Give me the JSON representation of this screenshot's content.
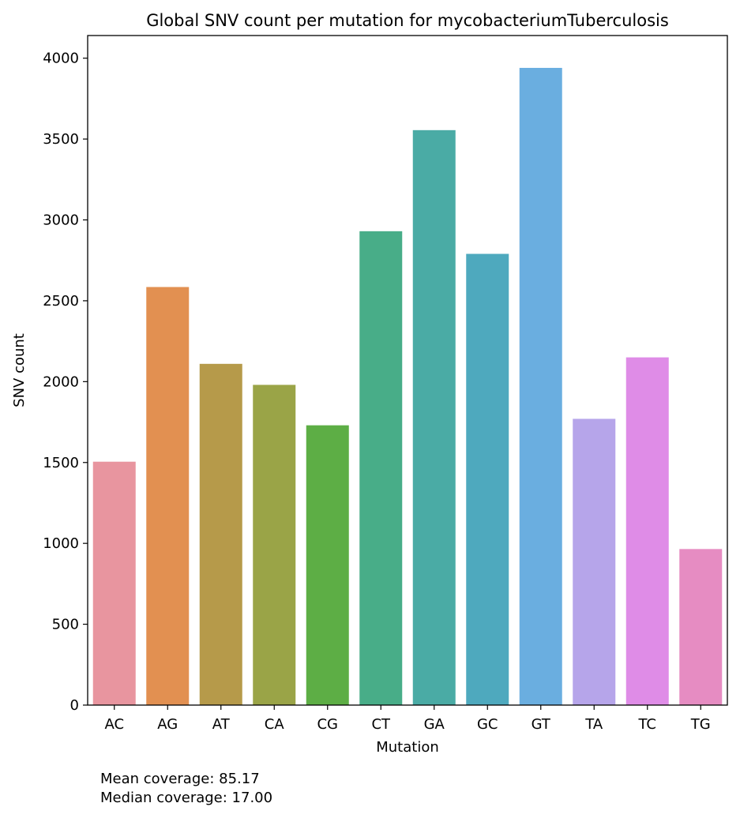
{
  "chart_data": {
    "type": "bar",
    "title": "Global SNV count per mutation for mycobacteriumTuberculosis",
    "xlabel": "Mutation",
    "ylabel": "SNV count",
    "categories": [
      "AC",
      "AG",
      "AT",
      "CA",
      "CG",
      "CT",
      "GA",
      "GC",
      "GT",
      "TA",
      "TC",
      "TG"
    ],
    "values": [
      1505,
      2585,
      2110,
      1980,
      1730,
      2930,
      3555,
      2790,
      3940,
      1770,
      2150,
      965
    ],
    "colors": [
      "#e8959f",
      "#e29051",
      "#b69a4a",
      "#9aa447",
      "#5dae45",
      "#48ad88",
      "#4aaba5",
      "#4ea9be",
      "#6aaee0",
      "#b6a5ea",
      "#df8ce7",
      "#e68cc2"
    ],
    "ylim": [
      0,
      4140
    ],
    "yticks": [
      0,
      500,
      1000,
      1500,
      2000,
      2500,
      3000,
      3500,
      4000
    ],
    "grid": false,
    "legend": "none"
  },
  "annotations": {
    "mean": "Mean coverage: 85.17",
    "median": "Median coverage: 17.00"
  }
}
